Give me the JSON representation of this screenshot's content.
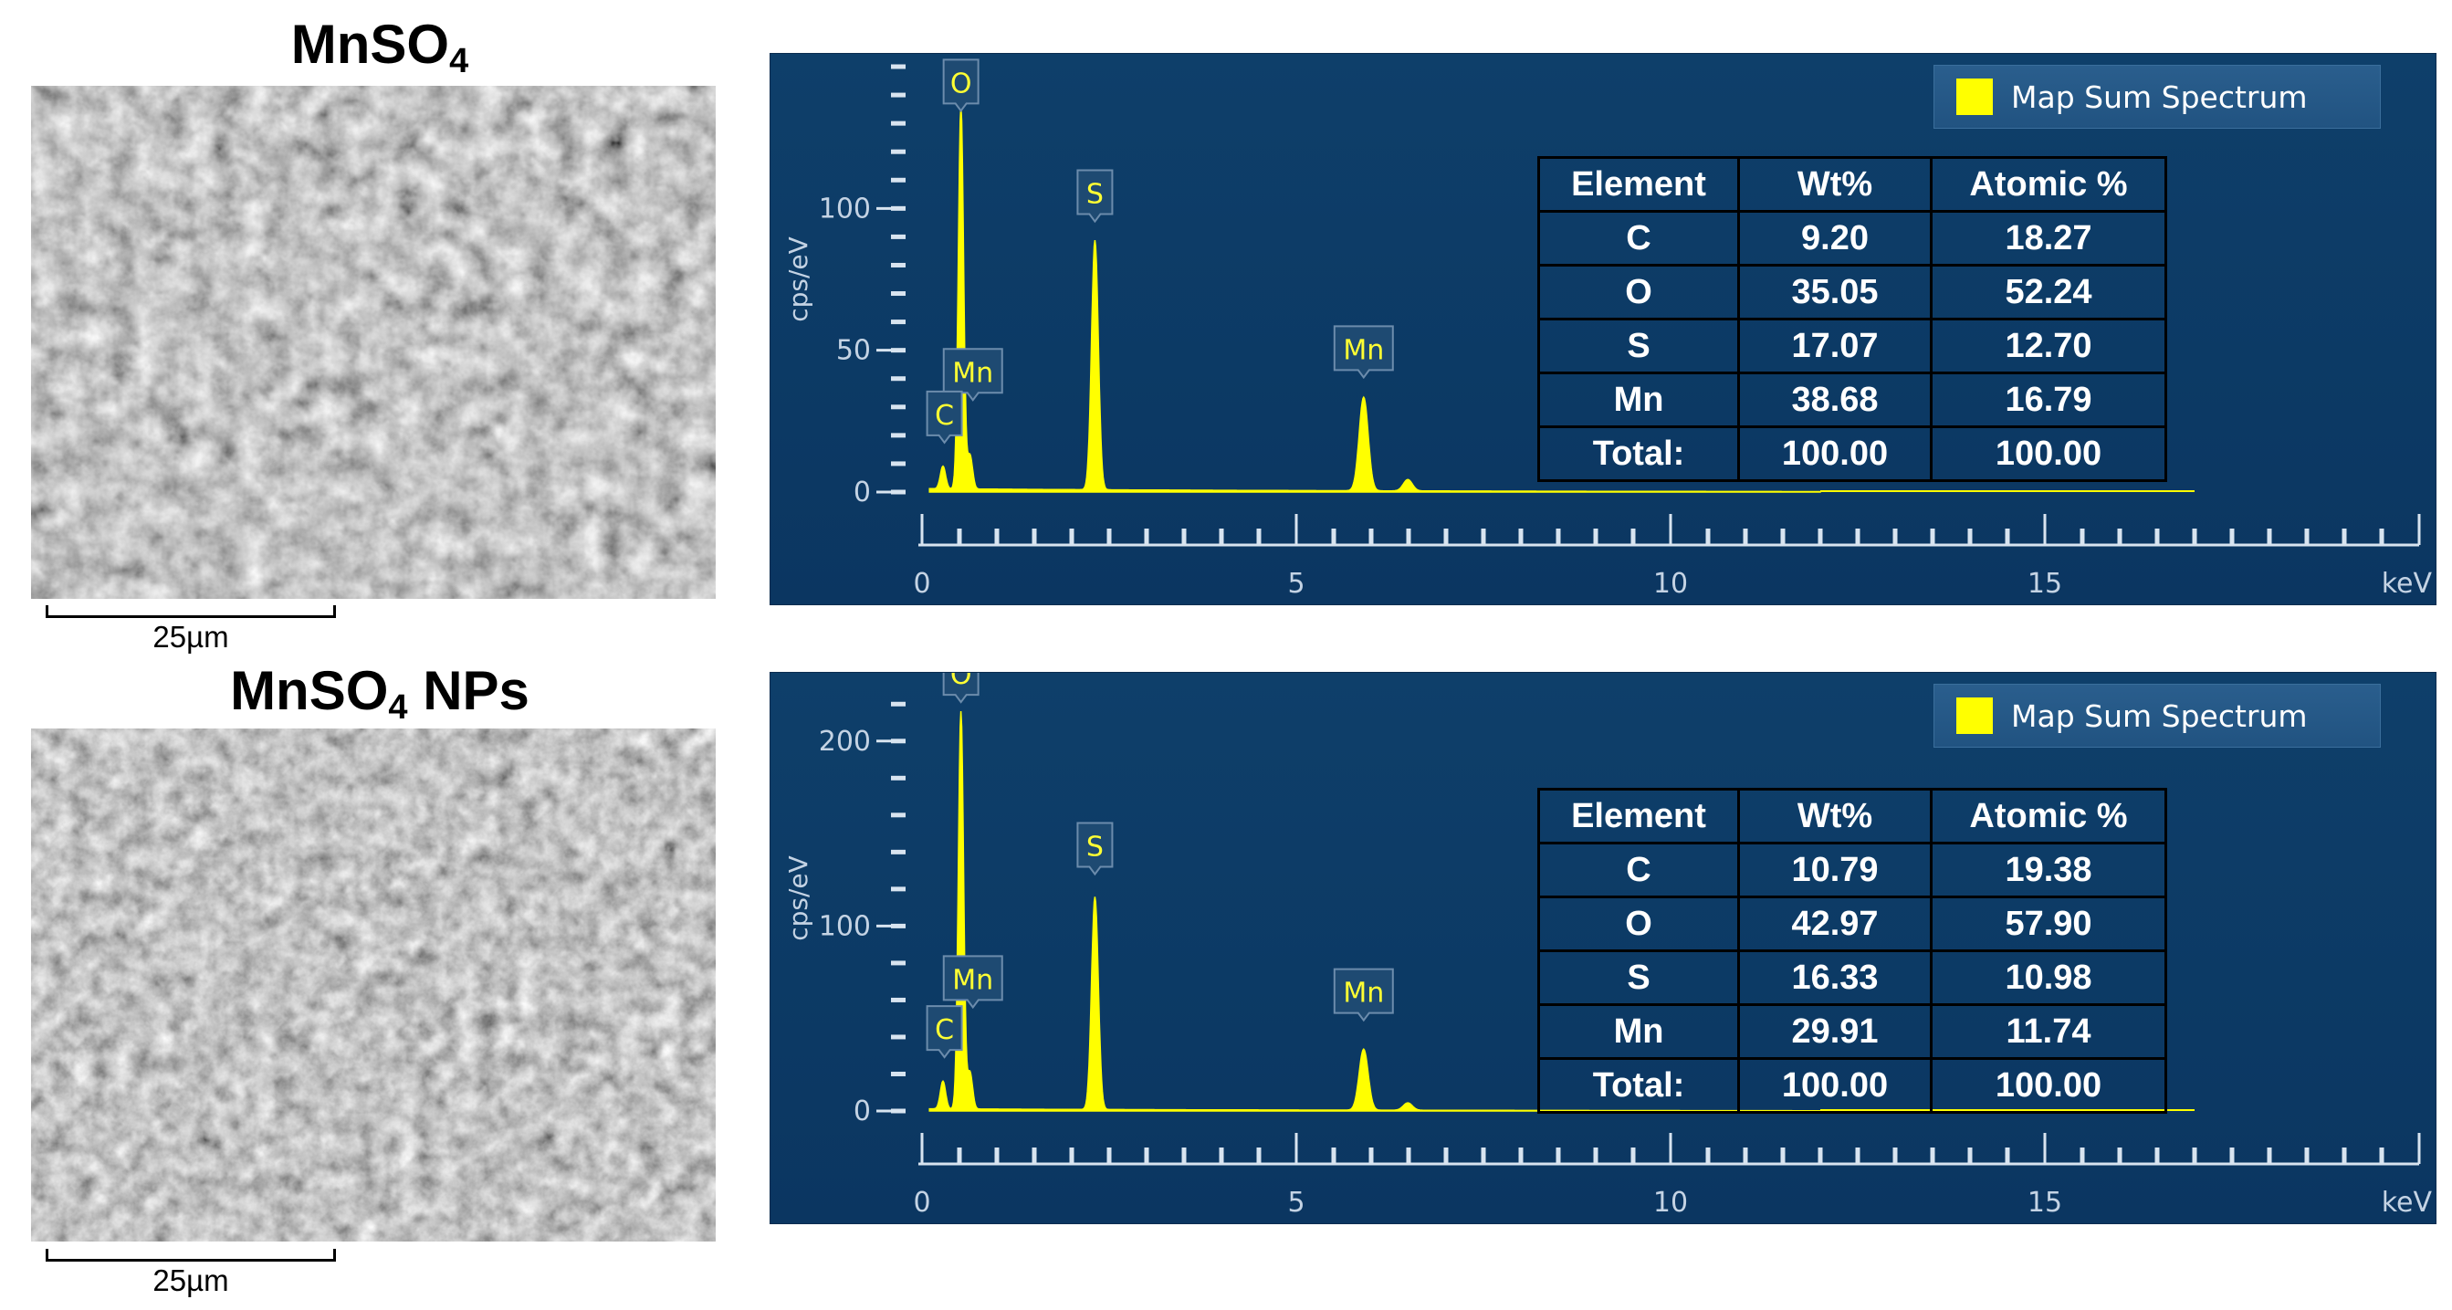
{
  "figures": [
    {
      "title_main": "MnSO",
      "title_sub": "4",
      "title_suffix": "",
      "scale_label": "25µm"
    },
    {
      "title_main": "MnSO",
      "title_sub": "4",
      "title_suffix": " NPs",
      "scale_label": "25µm"
    }
  ],
  "colors": {
    "panel_bg": "#0e3f6a",
    "spectrum": "#ffff00",
    "axis": "#ffffff"
  },
  "chart_data": [
    {
      "type": "area",
      "legend": "Map Sum Spectrum",
      "legend_position": "top-right",
      "xlabel": "keV",
      "ylabel": "cps/eV",
      "xlim": [
        0,
        20
      ],
      "ylim": [
        0,
        150
      ],
      "x_ticks": [
        0,
        5,
        10,
        15
      ],
      "y_ticks": [
        0,
        50,
        100
      ],
      "peaks": [
        {
          "label": "C",
          "x": 0.28,
          "y": 8
        },
        {
          "label": "O",
          "x": 0.52,
          "y": 135
        },
        {
          "label": "Mn",
          "x": 0.64,
          "y": 12
        },
        {
          "label": "S",
          "x": 2.31,
          "y": 88
        },
        {
          "label": "Mn",
          "x": 5.9,
          "y": 33
        },
        {
          "label": "",
          "x": 6.49,
          "y": 4
        }
      ],
      "peak_labels": [
        {
          "label": "O",
          "x": 0.52,
          "y": 137
        },
        {
          "label": "S",
          "x": 2.31,
          "y": 98
        },
        {
          "label": "Mn",
          "x": 5.9,
          "y": 43
        },
        {
          "label": "Mn",
          "x": 0.68,
          "y": 35
        },
        {
          "label": "C",
          "x": 0.3,
          "y": 20
        }
      ],
      "table": {
        "headers": [
          "Element",
          "Wt%",
          "Atomic %"
        ],
        "rows": [
          [
            "C",
            "9.20",
            "18.27"
          ],
          [
            "O",
            "35.05",
            "52.24"
          ],
          [
            "S",
            "17.07",
            "12.70"
          ],
          [
            "Mn",
            "38.68",
            "16.79"
          ],
          [
            "Total:",
            "100.00",
            "100.00"
          ]
        ]
      }
    },
    {
      "type": "area",
      "legend": "Map Sum Spectrum",
      "legend_position": "top-right",
      "xlabel": "keV",
      "ylabel": "cps/eV",
      "xlim": [
        0,
        20
      ],
      "ylim": [
        0,
        230
      ],
      "x_ticks": [
        0,
        5,
        10,
        15
      ],
      "y_ticks": [
        0,
        100,
        200
      ],
      "peaks": [
        {
          "label": "C",
          "x": 0.28,
          "y": 15
        },
        {
          "label": "O",
          "x": 0.52,
          "y": 215
        },
        {
          "label": "Mn",
          "x": 0.64,
          "y": 20
        },
        {
          "label": "S",
          "x": 2.31,
          "y": 115
        },
        {
          "label": "Mn",
          "x": 5.9,
          "y": 33
        },
        {
          "label": "",
          "x": 6.49,
          "y": 4
        }
      ],
      "peak_labels": [
        {
          "label": "O",
          "x": 0.52,
          "y": 225
        },
        {
          "label": "S",
          "x": 2.31,
          "y": 132
        },
        {
          "label": "Mn",
          "x": 5.9,
          "y": 53
        },
        {
          "label": "Mn",
          "x": 0.68,
          "y": 60
        },
        {
          "label": "C",
          "x": 0.3,
          "y": 33
        }
      ],
      "table": {
        "headers": [
          "Element",
          "Wt%",
          "Atomic %"
        ],
        "rows": [
          [
            "C",
            "10.79",
            "19.38"
          ],
          [
            "O",
            "42.97",
            "57.90"
          ],
          [
            "S",
            "16.33",
            "10.98"
          ],
          [
            "Mn",
            "29.91",
            "11.74"
          ],
          [
            "Total:",
            "100.00",
            "100.00"
          ]
        ]
      }
    }
  ]
}
